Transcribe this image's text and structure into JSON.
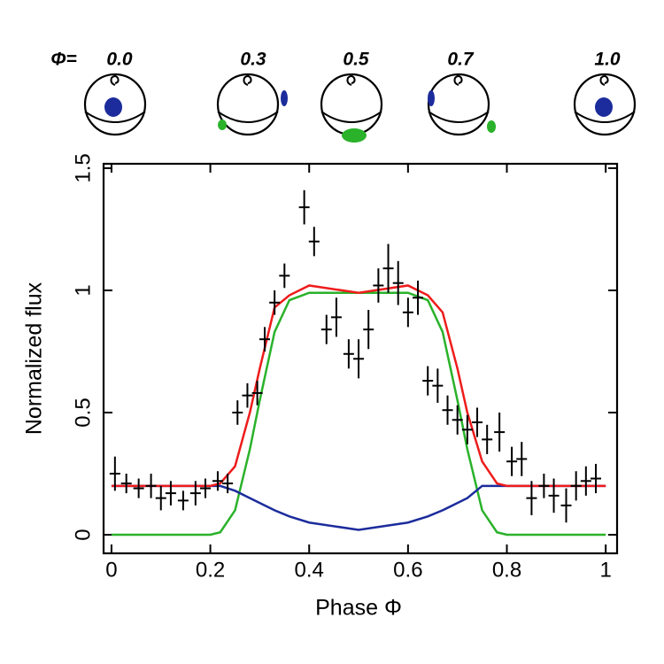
{
  "illustration": {
    "prefix": "Φ=",
    "labels": [
      "0.0",
      "0.3",
      "0.5",
      "0.7",
      "1.0"
    ]
  },
  "chart_data": {
    "type": "errorbar",
    "xlabel": "Phase Φ",
    "ylabel": "Normalized flux",
    "xlim": [
      -0.016,
      1.023
    ],
    "ylim": [
      -0.076,
      1.518
    ],
    "xticks": [
      0,
      0.2,
      0.4,
      0.6,
      0.8,
      1
    ],
    "yticks": [
      0,
      0.5,
      1,
      1.5
    ],
    "color": "#000000",
    "x": [
      0.007,
      0.03,
      0.055,
      0.08,
      0.1,
      0.12,
      0.145,
      0.17,
      0.19,
      0.215,
      0.235,
      0.255,
      0.275,
      0.295,
      0.31,
      0.33,
      0.35,
      0.39,
      0.41,
      0.435,
      0.455,
      0.48,
      0.5,
      0.52,
      0.54,
      0.56,
      0.58,
      0.6,
      0.62,
      0.64,
      0.66,
      0.68,
      0.7,
      0.72,
      0.74,
      0.76,
      0.785,
      0.81,
      0.83,
      0.85,
      0.875,
      0.895,
      0.92,
      0.94,
      0.96,
      0.98
    ],
    "values": [
      0.25,
      0.21,
      0.19,
      0.2,
      0.15,
      0.17,
      0.14,
      0.17,
      0.19,
      0.22,
      0.21,
      0.5,
      0.57,
      0.58,
      0.8,
      0.95,
      1.06,
      1.34,
      1.2,
      0.84,
      0.89,
      0.74,
      0.72,
      0.84,
      1.02,
      1.09,
      1.03,
      0.91,
      0.97,
      0.63,
      0.61,
      0.51,
      0.47,
      0.43,
      0.46,
      0.39,
      0.42,
      0.3,
      0.31,
      0.15,
      0.2,
      0.16,
      0.12,
      0.2,
      0.22,
      0.23
    ],
    "errors": [
      0.07,
      0.04,
      0.04,
      0.05,
      0.05,
      0.05,
      0.04,
      0.05,
      0.04,
      0.04,
      0.04,
      0.05,
      0.05,
      0.05,
      0.05,
      0.05,
      0.05,
      0.07,
      0.06,
      0.06,
      0.08,
      0.06,
      0.08,
      0.08,
      0.07,
      0.1,
      0.09,
      0.06,
      0.07,
      0.06,
      0.07,
      0.06,
      0.06,
      0.06,
      0.06,
      0.06,
      0.08,
      0.06,
      0.07,
      0.07,
      0.05,
      0.07,
      0.07,
      0.06,
      0.06,
      0.06
    ],
    "curves": [
      {
        "color": "#2ab22a",
        "x": [
          0,
          0.2,
          0.22,
          0.25,
          0.28,
          0.3,
          0.33,
          0.36,
          0.4,
          0.5,
          0.6,
          0.64,
          0.67,
          0.7,
          0.72,
          0.75,
          0.78,
          0.8,
          1
        ],
        "values": [
          0,
          0,
          0.01,
          0.1,
          0.35,
          0.55,
          0.83,
          0.96,
          0.99,
          0.99,
          0.99,
          0.96,
          0.83,
          0.55,
          0.35,
          0.1,
          0.01,
          0,
          0
        ]
      },
      {
        "color": "#1c2c9c",
        "x": [
          0,
          0.2,
          0.22,
          0.25,
          0.28,
          0.3,
          0.33,
          0.36,
          0.4,
          0.5,
          0.6,
          0.64,
          0.67,
          0.7,
          0.72,
          0.75,
          0.78,
          0.8,
          1
        ],
        "values": [
          0.2,
          0.2,
          0.2,
          0.18,
          0.15,
          0.13,
          0.1,
          0.075,
          0.05,
          0.02,
          0.05,
          0.075,
          0.1,
          0.13,
          0.15,
          0.2,
          0.2,
          0.2,
          0.2
        ]
      },
      {
        "color": "#ee1c1c",
        "x": [
          0,
          0.2,
          0.22,
          0.25,
          0.28,
          0.3,
          0.33,
          0.36,
          0.4,
          0.5,
          0.6,
          0.64,
          0.67,
          0.7,
          0.72,
          0.75,
          0.78,
          0.8,
          1
        ],
        "values": [
          0.2,
          0.2,
          0.21,
          0.28,
          0.5,
          0.68,
          0.93,
          0.98,
          1.02,
          0.99,
          1.02,
          0.98,
          0.91,
          0.68,
          0.5,
          0.3,
          0.21,
          0.2,
          0.2
        ]
      }
    ]
  }
}
